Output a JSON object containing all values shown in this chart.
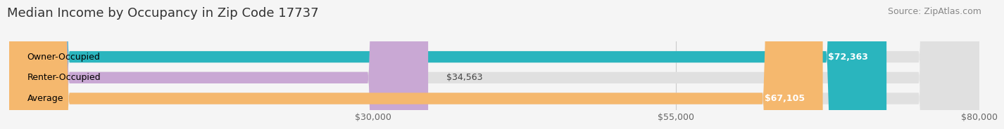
{
  "title": "Median Income by Occupancy in Zip Code 17737",
  "source": "Source: ZipAtlas.com",
  "categories": [
    "Owner-Occupied",
    "Renter-Occupied",
    "Average"
  ],
  "values": [
    72363,
    34563,
    67105
  ],
  "bar_colors": [
    "#2ab5be",
    "#c9a8d4",
    "#f5b86e"
  ],
  "bar_labels": [
    "$72,363",
    "$34,563",
    "$67,105"
  ],
  "label_inside": [
    true,
    false,
    true
  ],
  "xlim": [
    0,
    80000
  ],
  "xticks": [
    30000,
    55000,
    80000
  ],
  "xtick_labels": [
    "$30,000",
    "$55,000",
    "$80,000"
  ],
  "bg_color": "#f5f5f5",
  "bar_bg_color": "#e0e0e0",
  "bar_height": 0.55,
  "title_fontsize": 13,
  "source_fontsize": 9,
  "label_fontsize": 9,
  "tick_fontsize": 9
}
